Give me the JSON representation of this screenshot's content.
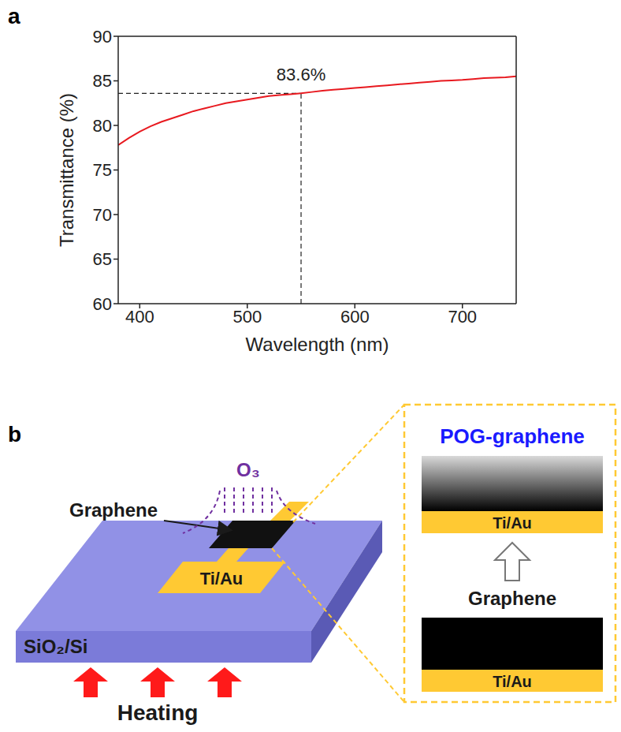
{
  "panel_labels": [
    "a",
    "b"
  ],
  "chart_data": {
    "type": "line",
    "x_label": "Wavelength (nm)",
    "y_label": "Transmittance (%)",
    "x": [
      380,
      390,
      400,
      410,
      420,
      430,
      440,
      450,
      460,
      470,
      480,
      490,
      500,
      510,
      520,
      530,
      540,
      550,
      560,
      570,
      580,
      590,
      600,
      610,
      620,
      630,
      640,
      650,
      660,
      670,
      680,
      690,
      700,
      710,
      720,
      730,
      740,
      750
    ],
    "series": [
      {
        "name": "Transmittance",
        "color": "#e8191f",
        "line_style": "solid",
        "values": [
          77.8,
          78.6,
          79.3,
          79.9,
          80.4,
          80.8,
          81.2,
          81.6,
          81.9,
          82.2,
          82.5,
          82.7,
          82.9,
          83.1,
          83.3,
          83.4,
          83.5,
          83.6,
          83.75,
          83.9,
          84.0,
          84.1,
          84.2,
          84.3,
          84.4,
          84.5,
          84.6,
          84.7,
          84.8,
          84.9,
          85.0,
          85.05,
          85.1,
          85.2,
          85.3,
          85.35,
          85.4,
          85.5
        ]
      }
    ],
    "xlim": [
      380,
      750
    ],
    "xticks": [
      400,
      500,
      600,
      700
    ],
    "ylim": [
      60,
      90
    ],
    "yticks": [
      60,
      65,
      70,
      75,
      80,
      85,
      90
    ],
    "grid": false,
    "annotations": [
      {
        "text": "83.6%",
        "x": 550,
        "y": 83.6,
        "line_style": "dashed"
      }
    ]
  },
  "diagram": {
    "panel_label": "b",
    "gas": "O₃",
    "device": {
      "channel": "Graphene",
      "electrode": "Ti/Au",
      "substrate": "SiO₂/Si",
      "heating": "Heating"
    },
    "inset": {
      "after": {
        "title": "POG-graphene",
        "electrode": "Ti/Au"
      },
      "before": {
        "title": "Graphene",
        "electrode": "Ti/Au"
      }
    }
  }
}
